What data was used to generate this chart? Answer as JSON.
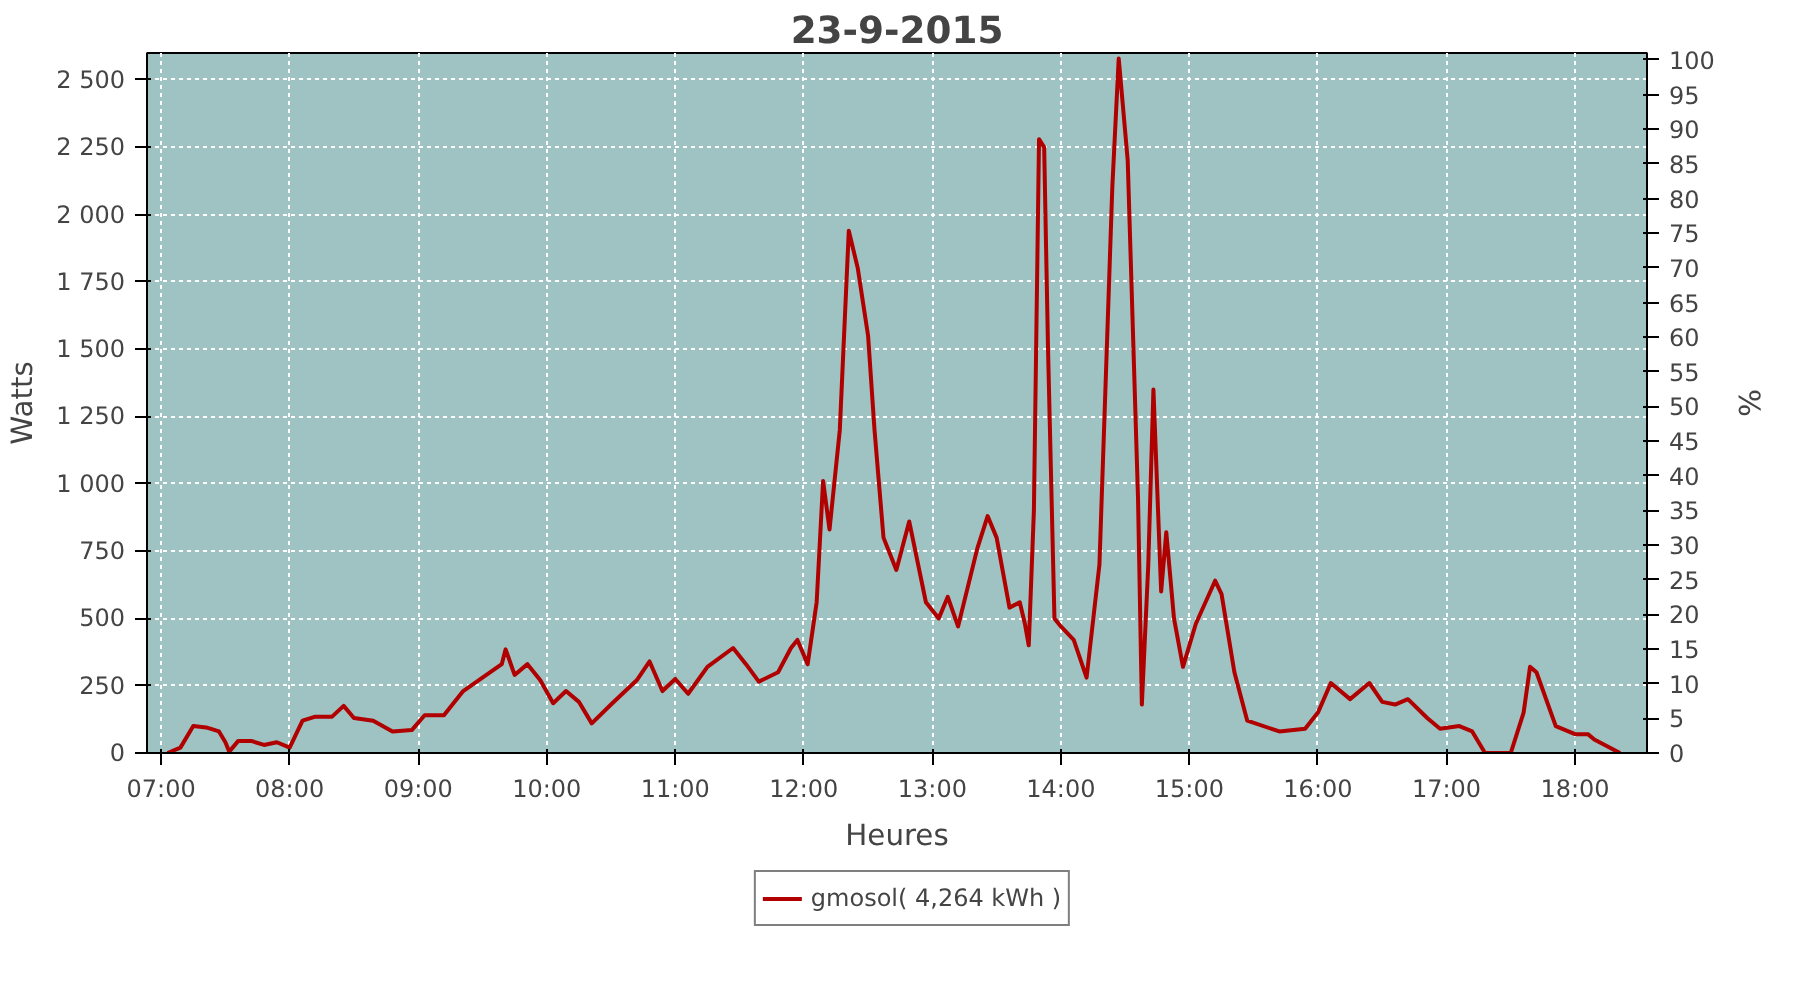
{
  "chart_data": {
    "type": "line",
    "title": "23-9-2015",
    "xlabel": "Heures",
    "ylabel": "Watts",
    "y2label": "%",
    "xlim": [
      6.89,
      18.56
    ],
    "xticks": [
      {
        "value": 7,
        "label": "07:00"
      },
      {
        "value": 8,
        "label": "08:00"
      },
      {
        "value": 9,
        "label": "09:00"
      },
      {
        "value": 10,
        "label": "10:00"
      },
      {
        "value": 11,
        "label": "11:00"
      },
      {
        "value": 12,
        "label": "12:00"
      },
      {
        "value": 13,
        "label": "13:00"
      },
      {
        "value": 14,
        "label": "14:00"
      },
      {
        "value": 15,
        "label": "15:00"
      },
      {
        "value": 16,
        "label": "16:00"
      },
      {
        "value": 17,
        "label": "17:00"
      },
      {
        "value": 18,
        "label": "18:00"
      }
    ],
    "ylim": [
      0,
      2600
    ],
    "yticks": [
      {
        "value": 0,
        "label": "0"
      },
      {
        "value": 250,
        "label": "250"
      },
      {
        "value": 500,
        "label": "500"
      },
      {
        "value": 750,
        "label": "750"
      },
      {
        "value": 1000,
        "label": "1 000"
      },
      {
        "value": 1250,
        "label": "1 250"
      },
      {
        "value": 1500,
        "label": "1 500"
      },
      {
        "value": 1750,
        "label": "1 750"
      },
      {
        "value": 2000,
        "label": "2 000"
      },
      {
        "value": 2250,
        "label": "2 250"
      },
      {
        "value": 2500,
        "label": "2 500"
      }
    ],
    "y2lim": [
      0,
      101
    ],
    "y2ticks": [
      0,
      5,
      10,
      15,
      20,
      25,
      30,
      35,
      40,
      45,
      50,
      55,
      60,
      65,
      70,
      75,
      80,
      85,
      90,
      95,
      100
    ],
    "grid": true,
    "legend": "bottom",
    "line_style": "solid",
    "marker": "none",
    "x": [
      7.05,
      7.15,
      7.25,
      7.35,
      7.45,
      7.5,
      7.53,
      7.6,
      7.7,
      7.8,
      7.9,
      8.0,
      8.1,
      8.2,
      8.33,
      8.42,
      8.5,
      8.65,
      8.8,
      8.95,
      9.05,
      9.2,
      9.35,
      9.5,
      9.65,
      9.68,
      9.75,
      9.85,
      9.95,
      10.05,
      10.15,
      10.25,
      10.35,
      10.5,
      10.7,
      10.8,
      10.9,
      11.0,
      11.1,
      11.25,
      11.45,
      11.55,
      11.65,
      11.8,
      11.9,
      11.95,
      12.03,
      12.1,
      12.15,
      12.2,
      12.28,
      12.35,
      12.42,
      12.5,
      12.55,
      12.62,
      12.72,
      12.82,
      12.95,
      13.05,
      13.12,
      13.2,
      13.35,
      13.43,
      13.5,
      13.6,
      13.68,
      13.72,
      13.75,
      13.79,
      13.83,
      13.87,
      13.9,
      13.95,
      14.0,
      14.1,
      14.2,
      14.3,
      14.4,
      14.45,
      14.52,
      14.6,
      14.63,
      14.68,
      14.72,
      14.78,
      14.82,
      14.88,
      14.95,
      15.05,
      15.2,
      15.25,
      15.35,
      15.45,
      15.7,
      15.9,
      16.0,
      16.1,
      16.25,
      16.4,
      16.5,
      16.6,
      16.7,
      16.85,
      16.95,
      17.1,
      17.2,
      17.3,
      17.5,
      17.6,
      17.65,
      17.7,
      17.85,
      18.0,
      18.1,
      18.15,
      18.35
    ],
    "series": [
      {
        "name": "gmosol( 4,264 kWh )",
        "color": "#b00000",
        "values": [
          0,
          20,
          100,
          95,
          80,
          40,
          5,
          45,
          45,
          30,
          40,
          20,
          120,
          135,
          135,
          175,
          130,
          120,
          80,
          85,
          140,
          140,
          230,
          280,
          330,
          385,
          290,
          330,
          270,
          185,
          230,
          190,
          110,
          180,
          270,
          340,
          230,
          275,
          220,
          320,
          390,
          330,
          265,
          300,
          390,
          420,
          330,
          560,
          1010,
          830,
          1200,
          1940,
          1800,
          1550,
          1200,
          800,
          680,
          860,
          560,
          500,
          580,
          470,
          760,
          880,
          800,
          540,
          560,
          480,
          400,
          900,
          2280,
          2250,
          1500,
          500,
          470,
          420,
          280,
          700,
          2100,
          2580,
          2200,
          950,
          180,
          700,
          1350,
          600,
          820,
          500,
          320,
          480,
          640,
          590,
          300,
          120,
          80,
          90,
          150,
          260,
          200,
          260,
          190,
          180,
          200,
          130,
          90,
          100,
          80,
          0,
          0,
          150,
          320,
          300,
          100,
          70,
          70,
          50,
          0
        ]
      }
    ]
  }
}
